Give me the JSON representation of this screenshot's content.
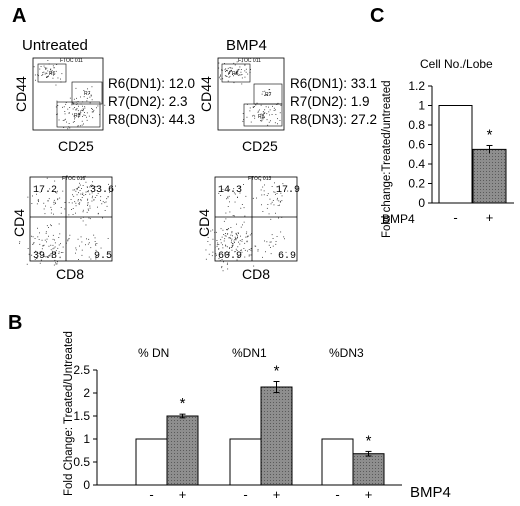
{
  "panel_a": {
    "letter": "A",
    "flow_plots": [
      {
        "condition": "Untreated",
        "top_plot": {
          "header": "FTOC 011",
          "y_axis": "CD44",
          "x_axis": "CD25",
          "gate_tags": [
            "R6",
            "R7",
            "R8"
          ],
          "gates": [
            {
              "label": "R6(DN1):",
              "value": "12.0"
            },
            {
              "label": "R7(DN2):",
              "value": "2.3"
            },
            {
              "label": "R8(DN3):",
              "value": "44.3"
            }
          ]
        },
        "bottom_plot": {
          "header": "FTOC 016",
          "y_axis": "CD4",
          "x_axis": "CD8",
          "quadrants": {
            "ul": "17.2",
            "ur": "33.6",
            "ll": "39.8",
            "lr": "9.5"
          }
        }
      },
      {
        "condition": "BMP4",
        "top_plot": {
          "header": "FTOC 011",
          "y_axis": "CD44",
          "x_axis": "CD25",
          "gate_tags": [
            "R6",
            "R7",
            "R8"
          ],
          "gates": [
            {
              "label": "R6(DN1):",
              "value": "33.1"
            },
            {
              "label": "R7(DN2):",
              "value": "1.9"
            },
            {
              "label": "R8(DN3):",
              "value": "27.2"
            }
          ]
        },
        "bottom_plot": {
          "header": "FTOC 013",
          "y_axis": "CD4",
          "x_axis": "CD8",
          "quadrants": {
            "ul": "14.3",
            "ur": "17.9",
            "ll": "60.9",
            "lr": "6.9"
          }
        }
      }
    ]
  },
  "panel_b": {
    "letter": "B",
    "treatment_label": "BMP4"
  },
  "panel_c": {
    "letter": "C"
  },
  "chart_data": [
    {
      "id": "panel_b",
      "type": "bar",
      "title": "",
      "ylabel": "Fold Change: Treated/Untreated",
      "xlabel": "",
      "ylim": [
        0,
        2.5
      ],
      "yticks": [
        "0",
        "0.5",
        "1",
        "1.5",
        "2",
        "2.5"
      ],
      "groups": [
        {
          "title": "% DN",
          "bars": [
            {
              "label": "-",
              "value": 1.0,
              "error": 0,
              "color": "#ffffff",
              "sig": ""
            },
            {
              "label": "+",
              "value": 1.5,
              "error": 0.04,
              "color": "#8a8a8a",
              "sig": "*"
            }
          ]
        },
        {
          "title": "%DN1",
          "bars": [
            {
              "label": "-",
              "value": 1.0,
              "error": 0,
              "color": "#ffffff",
              "sig": ""
            },
            {
              "label": "+",
              "value": 2.13,
              "error": 0.12,
              "color": "#8a8a8a",
              "sig": "*"
            }
          ]
        },
        {
          "title": "%DN3",
          "bars": [
            {
              "label": "-",
              "value": 1.0,
              "error": 0,
              "color": "#ffffff",
              "sig": ""
            },
            {
              "label": "+",
              "value": 0.68,
              "error": 0.05,
              "color": "#8a8a8a",
              "sig": "*"
            }
          ]
        }
      ]
    },
    {
      "id": "panel_c",
      "type": "bar",
      "title": "Cell No./Lobe",
      "ylabel": "Fold change:Treated/untreated",
      "xlabel": "BMP4",
      "ylim": [
        0,
        1.2
      ],
      "yticks": [
        "0",
        "0.2",
        "0.4",
        "0.6",
        "0.8",
        "1",
        "1.2"
      ],
      "categories": [
        "-",
        "+"
      ],
      "values": [
        1.0,
        0.55
      ],
      "errors": [
        0,
        0.04
      ],
      "colors": [
        "#ffffff",
        "#8a8a8a"
      ],
      "sig": [
        "",
        "*"
      ]
    }
  ]
}
